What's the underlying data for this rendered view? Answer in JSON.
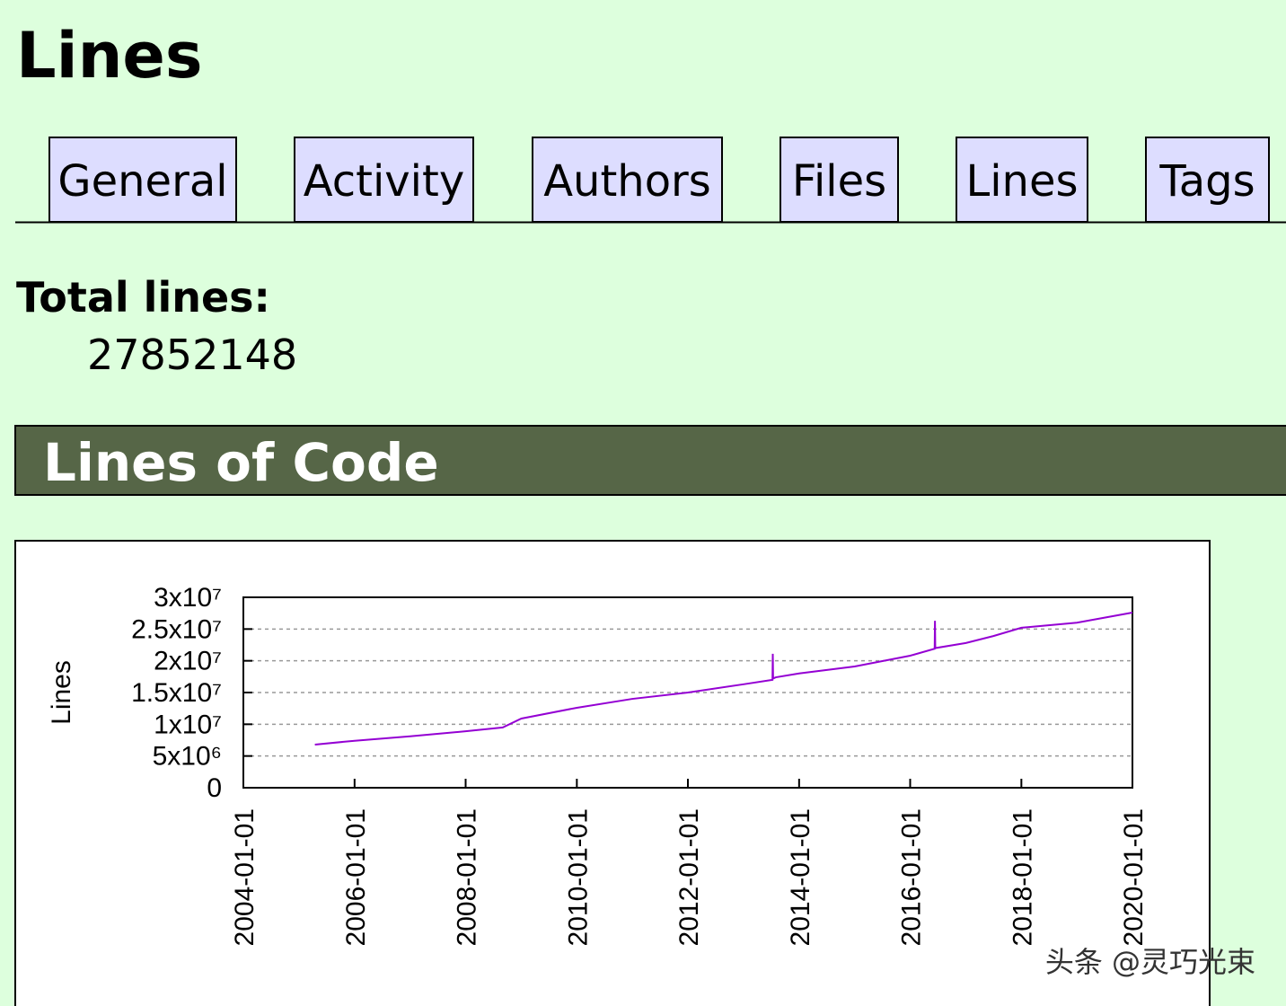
{
  "header": {
    "title": "Lines"
  },
  "nav": {
    "tabs": [
      "General",
      "Activity",
      "Authors",
      "Files",
      "Lines",
      "Tags"
    ]
  },
  "summary": {
    "label": "Total lines:",
    "value": 27852148
  },
  "section": {
    "title": "Lines of Code"
  },
  "chart_data": {
    "type": "line",
    "ylabel": "Lines",
    "color": "#9400d3",
    "grid": true,
    "x": [
      "2005-04-15",
      "2006-01-01",
      "2007-01-01",
      "2008-01-01",
      "2008-09-01",
      "2009-01-01",
      "2010-01-01",
      "2011-01-01",
      "2012-01-01",
      "2013-01-01",
      "2013-07-10",
      "2013-07-12",
      "2013-07-14",
      "2013-08-01",
      "2014-01-01",
      "2015-01-01",
      "2016-01-01",
      "2016-06-10",
      "2016-06-12",
      "2016-06-14",
      "2017-01-01",
      "2017-07-01",
      "2018-01-01",
      "2019-01-01",
      "2020-01-01"
    ],
    "values": [
      6800000,
      7400000,
      8100000,
      8900000,
      9500000,
      10900000,
      12600000,
      14000000,
      15000000,
      16300000,
      17000000,
      21100000,
      17200000,
      17400000,
      18000000,
      19100000,
      20800000,
      21900000,
      26300000,
      22000000,
      22800000,
      23900000,
      25200000,
      26000000,
      27600000
    ],
    "xlim": [
      "2004-01-01",
      "2020-01-01"
    ],
    "xticks": [
      "2004-01-01",
      "2006-01-01",
      "2008-01-01",
      "2010-01-01",
      "2012-01-01",
      "2014-01-01",
      "2016-01-01",
      "2018-01-01",
      "2020-01-01"
    ],
    "ylim": [
      0,
      30000000
    ],
    "yticks": [
      0,
      {
        "value": 5000000,
        "label": "5x10⁶"
      },
      {
        "value": 10000000,
        "label": "1x10⁷"
      },
      {
        "value": 15000000,
        "label": "1.5x10⁷"
      },
      {
        "value": 20000000,
        "label": "2x10⁷"
      },
      {
        "value": 25000000,
        "label": "2.5x10⁷"
      },
      {
        "value": 30000000,
        "label": "3x10⁷"
      }
    ]
  },
  "watermark": "头条 @灵巧光束"
}
